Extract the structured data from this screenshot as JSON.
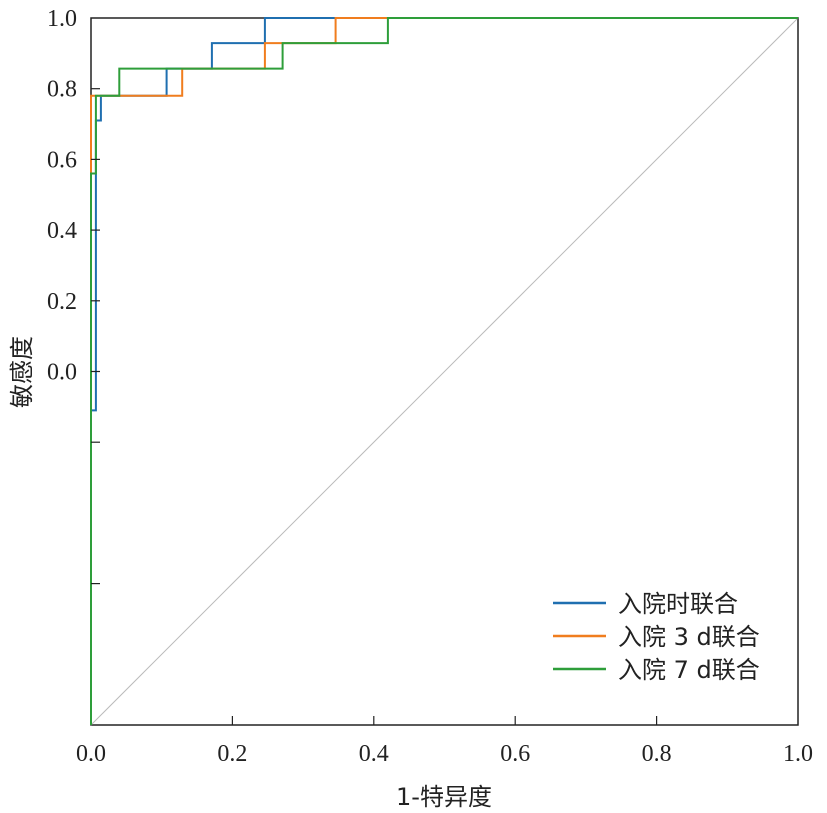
{
  "chart_data": {
    "type": "line",
    "title": "",
    "xlabel": "1-特异度",
    "ylabel": "敏感度",
    "xlim": [
      0,
      1
    ],
    "ylim": [
      -1.0,
      1.0
    ],
    "x_ticks": [
      "0.0",
      "0.2",
      "0.4",
      "0.6",
      "0.8",
      "1.0"
    ],
    "x_tick_values": [
      0,
      0.2,
      0.4,
      0.6,
      0.8,
      1.0
    ],
    "y_ticks": [
      "0.0",
      "0.2",
      "0.4",
      "0.6",
      "0.8",
      "1.0"
    ],
    "y_tick_values": [
      0.0,
      0.2,
      0.4,
      0.6,
      0.8,
      1.0
    ],
    "y_unlabeled_ticks": [
      -0.2,
      -0.6,
      -1.0
    ],
    "grid": false,
    "legend_position": "bottom-right",
    "reference_line": {
      "from": [
        0,
        -1.0
      ],
      "to": [
        1,
        1.0
      ],
      "color": "#bbbbbb"
    },
    "series": [
      {
        "name": "入院时联合",
        "color": "#1f6fb0",
        "x": [
          0.0,
          0.0,
          0.007,
          0.007,
          0.014,
          0.014,
          0.021,
          0.021,
          0.107,
          0.107,
          0.171,
          0.171,
          0.246,
          0.246,
          0.42,
          0.42,
          1.0
        ],
        "y": [
          -1.0,
          -0.11,
          -0.11,
          0.71,
          0.71,
          0.78,
          0.78,
          0.78,
          0.78,
          0.857,
          0.857,
          0.929,
          0.929,
          1.0,
          1.0,
          1.0,
          1.0
        ]
      },
      {
        "name": "入院 3 d联合",
        "color": "#f07d1e",
        "x": [
          0.0,
          0.0,
          0.0,
          0.0,
          0.007,
          0.007,
          0.129,
          0.129,
          0.246,
          0.246,
          0.346,
          0.346,
          1.0
        ],
        "y": [
          -1.0,
          0.56,
          0.56,
          0.78,
          0.78,
          0.78,
          0.78,
          0.857,
          0.857,
          0.929,
          0.929,
          1.0,
          1.0
        ]
      },
      {
        "name": "入院 7 d联合",
        "color": "#2e9e3a",
        "x": [
          0.0,
          0.0,
          0.007,
          0.007,
          0.04,
          0.04,
          0.271,
          0.271,
          0.42,
          0.42,
          1.0
        ],
        "y": [
          -1.0,
          0.56,
          0.56,
          0.78,
          0.78,
          0.857,
          0.857,
          0.929,
          0.929,
          1.0,
          1.0
        ]
      }
    ]
  }
}
